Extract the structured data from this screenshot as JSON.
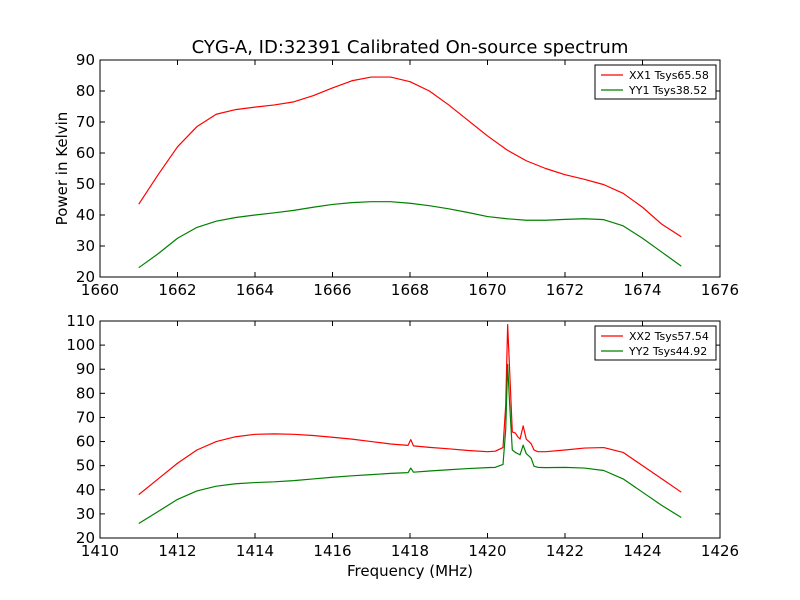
{
  "figure": {
    "title": "CYG-A, ID:32391 Calibrated On-source spectrum"
  },
  "chart_data": [
    {
      "type": "line",
      "title": "CYG-A, ID:32391 Calibrated On-source spectrum",
      "xlabel": "",
      "ylabel": "Power in Kelvin",
      "xlim": [
        1660,
        1676
      ],
      "ylim": [
        20,
        90
      ],
      "xticks": [
        1660,
        1662,
        1664,
        1666,
        1668,
        1670,
        1672,
        1674,
        1676
      ],
      "yticks": [
        20,
        30,
        40,
        50,
        60,
        70,
        80,
        90
      ],
      "grid": false,
      "legend_position": "top-right",
      "series": [
        {
          "name": "XX1 Tsys65.58",
          "color": "#ff0000",
          "x": [
            1661.0,
            1661.5,
            1662.0,
            1662.5,
            1663.0,
            1663.5,
            1664.0,
            1664.5,
            1665.0,
            1665.5,
            1666.0,
            1666.5,
            1667.0,
            1667.5,
            1668.0,
            1668.5,
            1669.0,
            1669.5,
            1670.0,
            1670.5,
            1671.0,
            1671.5,
            1672.0,
            1672.5,
            1673.0,
            1673.5,
            1674.0,
            1674.5,
            1675.0
          ],
          "y": [
            43.5,
            53.0,
            62.0,
            68.5,
            72.5,
            74.0,
            74.8,
            75.5,
            76.5,
            78.5,
            81.0,
            83.3,
            84.5,
            84.5,
            83.0,
            80.0,
            75.5,
            70.5,
            65.5,
            61.0,
            57.5,
            55.0,
            53.0,
            51.5,
            49.8,
            47.0,
            42.5,
            37.0,
            33.0
          ]
        },
        {
          "name": "YY1 Tsys38.52",
          "color": "#008000",
          "x": [
            1661.0,
            1661.5,
            1662.0,
            1662.5,
            1663.0,
            1663.5,
            1664.0,
            1664.5,
            1665.0,
            1665.5,
            1666.0,
            1666.5,
            1667.0,
            1667.5,
            1668.0,
            1668.5,
            1669.0,
            1669.5,
            1670.0,
            1670.5,
            1671.0,
            1671.5,
            1672.0,
            1672.5,
            1673.0,
            1673.5,
            1674.0,
            1674.5,
            1675.0
          ],
          "y": [
            23.0,
            27.5,
            32.5,
            36.0,
            38.0,
            39.2,
            40.0,
            40.7,
            41.5,
            42.5,
            43.4,
            44.0,
            44.3,
            44.3,
            43.8,
            43.0,
            42.0,
            40.8,
            39.5,
            38.8,
            38.3,
            38.3,
            38.6,
            38.8,
            38.5,
            36.5,
            32.5,
            28.0,
            23.5
          ]
        }
      ]
    },
    {
      "type": "line",
      "title": "",
      "xlabel": "Frequency (MHz)",
      "ylabel": "",
      "xlim": [
        1410,
        1426
      ],
      "ylim": [
        20,
        110
      ],
      "xticks": [
        1410,
        1412,
        1414,
        1416,
        1418,
        1420,
        1422,
        1424,
        1426
      ],
      "yticks": [
        20,
        30,
        40,
        50,
        60,
        70,
        80,
        90,
        100,
        110
      ],
      "grid": false,
      "legend_position": "top-right",
      "series": [
        {
          "name": "XX2 Tsys57.54",
          "color": "#ff0000",
          "x": [
            1411.0,
            1411.5,
            1412.0,
            1412.5,
            1413.0,
            1413.5,
            1414.0,
            1414.5,
            1415.0,
            1415.5,
            1416.0,
            1416.5,
            1417.0,
            1417.5,
            1417.95,
            1418.02,
            1418.09,
            1418.5,
            1419.0,
            1419.5,
            1420.0,
            1420.2,
            1420.4,
            1420.47,
            1420.52,
            1420.57,
            1420.64,
            1420.72,
            1420.78,
            1420.84,
            1420.92,
            1421.0,
            1421.07,
            1421.13,
            1421.2,
            1421.3,
            1421.5,
            1422.0,
            1422.5,
            1423.0,
            1423.5,
            1424.0,
            1424.5,
            1425.0
          ],
          "y": [
            38.0,
            44.5,
            51.0,
            56.5,
            60.0,
            62.0,
            63.0,
            63.2,
            63.0,
            62.5,
            61.8,
            61.0,
            60.0,
            59.0,
            58.4,
            60.8,
            58.2,
            57.6,
            57.0,
            56.3,
            55.8,
            56.0,
            57.5,
            75.0,
            108.5,
            90.0,
            64.0,
            63.5,
            62.0,
            61.0,
            66.5,
            61.0,
            60.0,
            59.0,
            56.5,
            55.8,
            55.8,
            56.5,
            57.3,
            57.5,
            55.5,
            50.0,
            44.5,
            39.0
          ]
        },
        {
          "name": "YY2 Tsys44.92",
          "color": "#008000",
          "x": [
            1411.0,
            1411.5,
            1412.0,
            1412.5,
            1413.0,
            1413.5,
            1414.0,
            1414.5,
            1415.0,
            1415.5,
            1416.0,
            1416.5,
            1417.0,
            1417.5,
            1417.95,
            1418.02,
            1418.09,
            1418.5,
            1419.0,
            1419.5,
            1420.0,
            1420.2,
            1420.4,
            1420.47,
            1420.52,
            1420.57,
            1420.64,
            1420.72,
            1420.78,
            1420.84,
            1420.92,
            1421.0,
            1421.07,
            1421.13,
            1421.2,
            1421.3,
            1421.5,
            1422.0,
            1422.5,
            1423.0,
            1423.5,
            1424.0,
            1424.5,
            1425.0
          ],
          "y": [
            26.0,
            31.0,
            36.0,
            39.5,
            41.5,
            42.5,
            43.0,
            43.3,
            43.8,
            44.5,
            45.2,
            45.8,
            46.3,
            46.8,
            47.1,
            49.0,
            47.3,
            47.8,
            48.3,
            48.8,
            49.2,
            49.3,
            50.5,
            65.0,
            92.0,
            76.0,
            56.5,
            55.5,
            55.0,
            54.5,
            58.5,
            55.0,
            54.0,
            53.0,
            49.8,
            49.3,
            49.2,
            49.3,
            49.0,
            48.0,
            44.5,
            39.0,
            33.5,
            28.5
          ]
        }
      ]
    }
  ]
}
